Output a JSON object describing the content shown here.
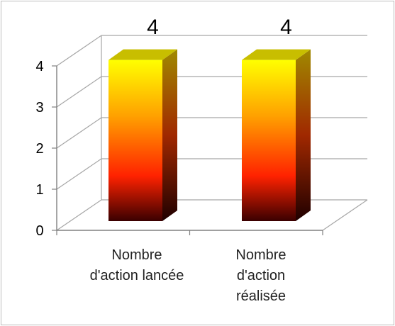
{
  "chart_data": {
    "type": "bar",
    "categories": [
      [
        "Nombre",
        "d'action lancée"
      ],
      [
        "Nombre",
        "d'action",
        "réalisée"
      ]
    ],
    "values": [
      4,
      4
    ],
    "data_labels": [
      "4",
      "4"
    ],
    "ylim": [
      0,
      4
    ],
    "yticks": [
      "0",
      "1",
      "2",
      "3",
      "4"
    ],
    "grid": true,
    "style": "3d-column",
    "colors": {
      "bar_top": "#ffff00",
      "bar_mid": "#ff2a00",
      "bar_bottom": "#3a0000",
      "cap": "#c8be00",
      "grid": "#a6a6a6",
      "axis": "#808080"
    }
  }
}
